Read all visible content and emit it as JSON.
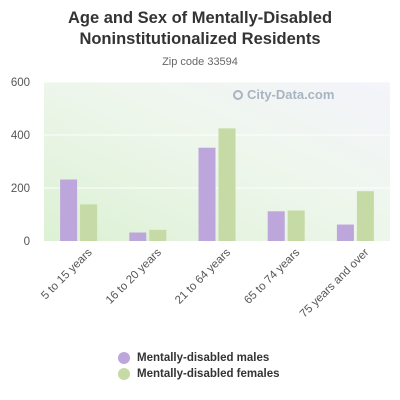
{
  "chart_data": {
    "type": "bar",
    "title": "Age and Sex of Mentally-Disabled Noninstitutionalized Residents",
    "subtitle": "Zip code 33594",
    "categories": [
      "5 to 15 years",
      "16 to 20 years",
      "21 to 64 years",
      "65 to 74 years",
      "75 years and over"
    ],
    "series": [
      {
        "name": "Mentally-disabled males",
        "values": [
          232,
          32,
          352,
          112,
          62
        ],
        "color": "#bca6db"
      },
      {
        "name": "Mentally-disabled females",
        "values": [
          138,
          42,
          425,
          115,
          188
        ],
        "color": "#c6daa6"
      }
    ],
    "ylim": [
      0,
      600
    ],
    "yticks": [
      0,
      200,
      400,
      600
    ],
    "xlabel": "",
    "ylabel": "",
    "grid": true,
    "legend_position": "bottom"
  },
  "watermark": {
    "text": "City-Data.com",
    "icon": "search-icon"
  }
}
